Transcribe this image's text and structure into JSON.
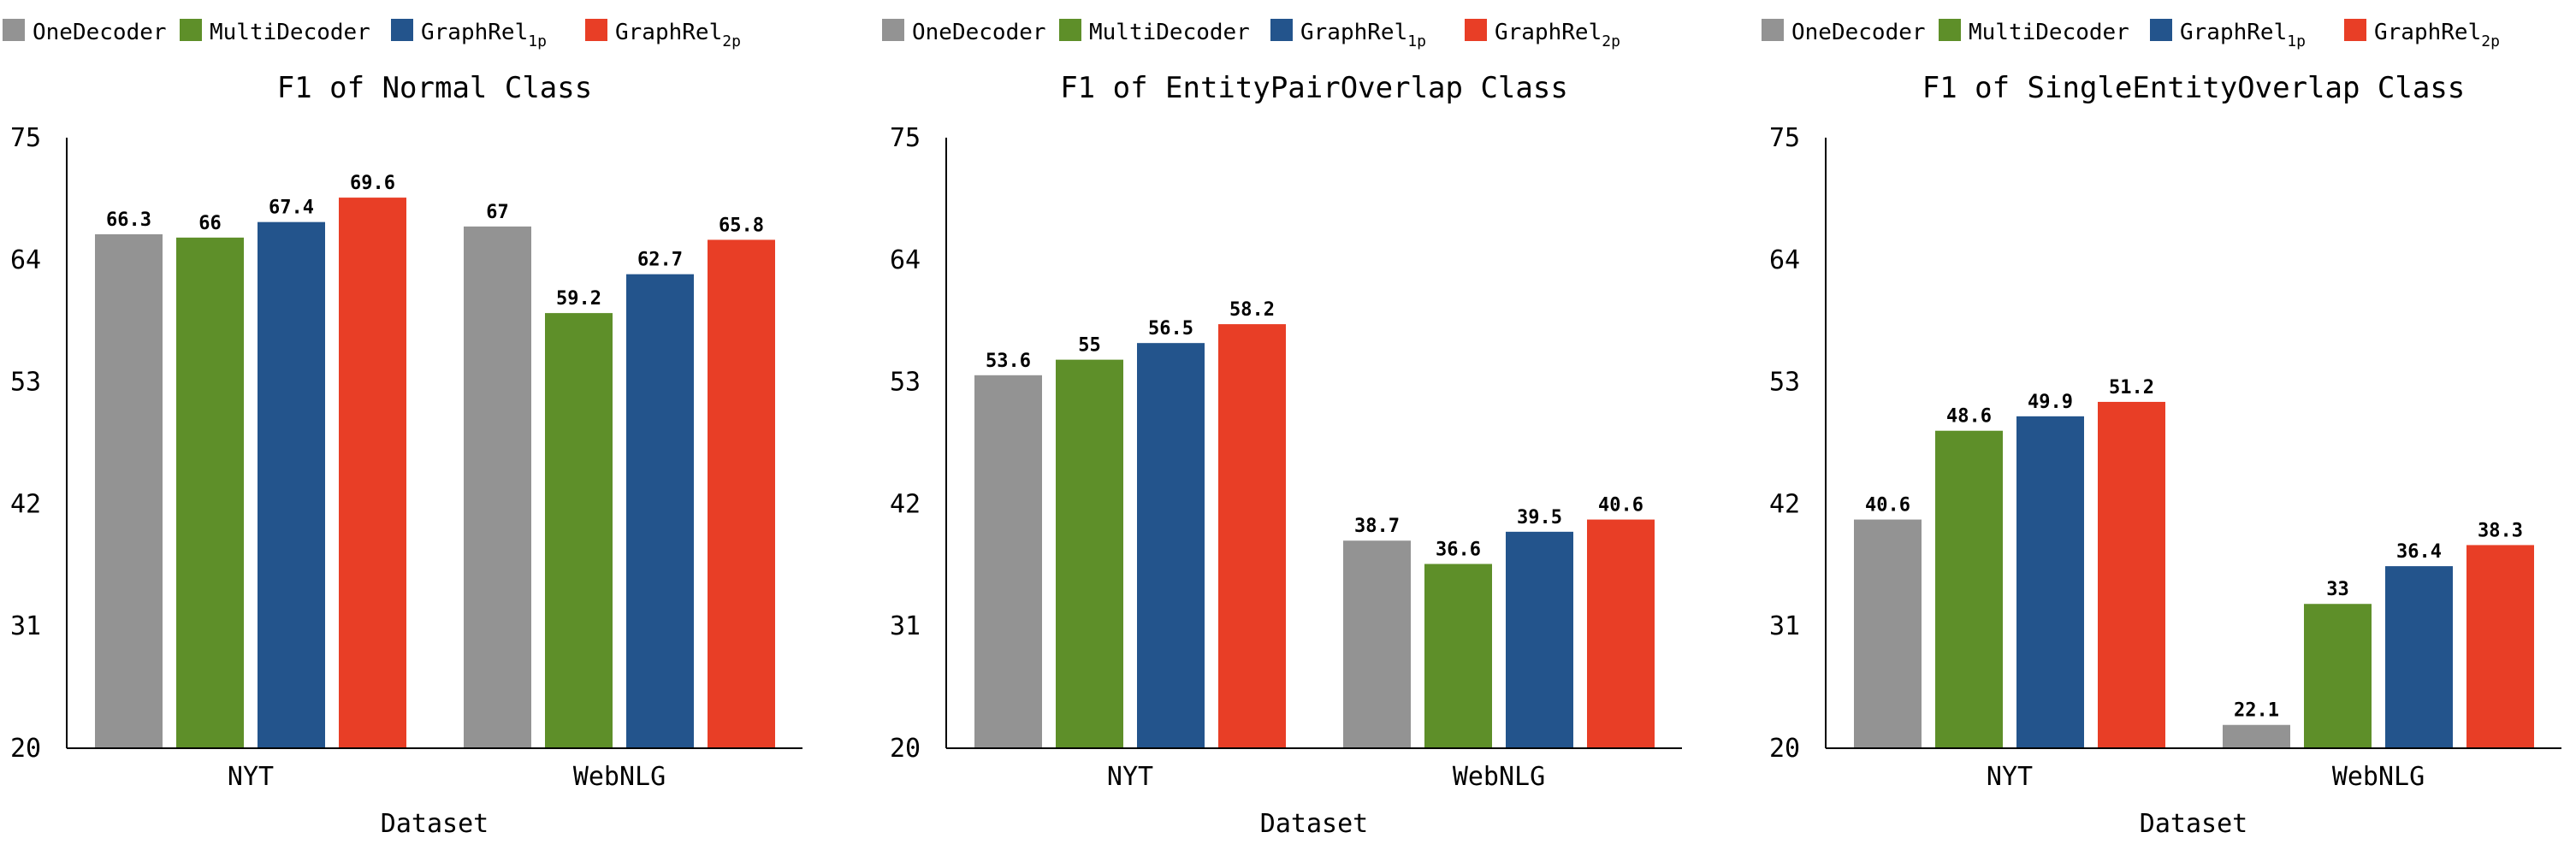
{
  "chart_data": [
    {
      "type": "bar",
      "title": "F1 of Normal Class",
      "xlabel": "Dataset",
      "ylabel": "",
      "ylim": [
        20,
        75
      ],
      "yticks": [
        20,
        31,
        42,
        53,
        64,
        75
      ],
      "categories": [
        "NYT",
        "WebNLG"
      ],
      "legend_position": "top",
      "grid": false,
      "series": [
        {
          "name": "OneDecoder",
          "color": "#939393",
          "values": [
            66.3,
            67
          ]
        },
        {
          "name": "MultiDecoder",
          "color": "#5e8f29",
          "values": [
            66,
            59.2
          ]
        },
        {
          "name": "GraphRel",
          "name_sub": "1p",
          "color": "#23548c",
          "values": [
            67.4,
            62.7
          ]
        },
        {
          "name": "GraphRel",
          "name_sub": "2p",
          "color": "#e83e26",
          "values": [
            69.6,
            65.8
          ]
        }
      ]
    },
    {
      "type": "bar",
      "title": "F1 of EntityPairOverlap Class",
      "xlabel": "Dataset",
      "ylabel": "",
      "ylim": [
        20,
        75
      ],
      "yticks": [
        20,
        31,
        42,
        53,
        64,
        75
      ],
      "categories": [
        "NYT",
        "WebNLG"
      ],
      "legend_position": "top",
      "grid": false,
      "series": [
        {
          "name": "OneDecoder",
          "color": "#939393",
          "values": [
            53.6,
            38.7
          ]
        },
        {
          "name": "MultiDecoder",
          "color": "#5e8f29",
          "values": [
            55,
            36.6
          ]
        },
        {
          "name": "GraphRel",
          "name_sub": "1p",
          "color": "#23548c",
          "values": [
            56.5,
            39.5
          ]
        },
        {
          "name": "GraphRel",
          "name_sub": "2p",
          "color": "#e83e26",
          "values": [
            58.2,
            40.6
          ]
        }
      ]
    },
    {
      "type": "bar",
      "title": "F1 of SingleEntityOverlap Class",
      "xlabel": "Dataset",
      "ylabel": "",
      "ylim": [
        20,
        75
      ],
      "yticks": [
        20,
        31,
        42,
        53,
        64,
        75
      ],
      "categories": [
        "NYT",
        "WebNLG"
      ],
      "legend_position": "top",
      "grid": false,
      "series": [
        {
          "name": "OneDecoder",
          "color": "#939393",
          "values": [
            40.6,
            22.1
          ]
        },
        {
          "name": "MultiDecoder",
          "color": "#5e8f29",
          "values": [
            48.6,
            33
          ]
        },
        {
          "name": "GraphRel",
          "name_sub": "1p",
          "color": "#23548c",
          "values": [
            49.9,
            36.4
          ]
        },
        {
          "name": "GraphRel",
          "name_sub": "2p",
          "color": "#e83e26",
          "values": [
            51.2,
            38.3
          ]
        }
      ]
    }
  ]
}
